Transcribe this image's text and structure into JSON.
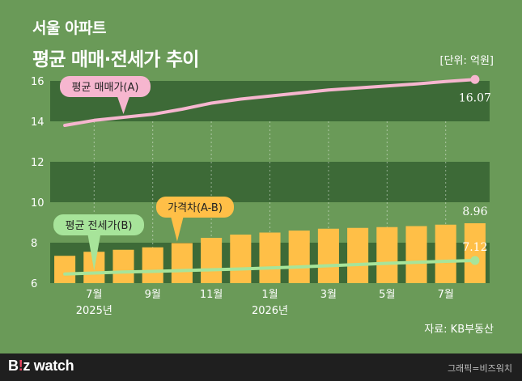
{
  "header": {
    "title_line1": "서울 아파트",
    "title_line2": "평균 매매·전세가 추이",
    "unit": "[단위: 억원]"
  },
  "source": "자료: KB부동산",
  "footer": {
    "logo_b": "B",
    "logo_colon": "!",
    "logo_z": "z",
    "logo_watch": " watch",
    "credit": "그래픽=비즈워치"
  },
  "colors": {
    "background": "#6a9a58",
    "band": "#3d6a37",
    "bar": "#ffbf47",
    "sale_line": "#f6b6cf",
    "jeonse_line": "#a7e49a"
  },
  "chart_data": {
    "type": "line+bar",
    "x": [
      "2025-06",
      "2025-07",
      "2025-08",
      "2025-09",
      "2025-10",
      "2025-11",
      "2025-12",
      "2026-01",
      "2026-02",
      "2026-03",
      "2026-04",
      "2026-05",
      "2026-06",
      "2026-07",
      "2026-08"
    ],
    "x_tick_labels": [
      {
        "index": 1,
        "label": "7월",
        "sub": "2025년"
      },
      {
        "index": 3,
        "label": "9월",
        "sub": ""
      },
      {
        "index": 5,
        "label": "11월",
        "sub": ""
      },
      {
        "index": 7,
        "label": "1월",
        "sub": "2026년"
      },
      {
        "index": 9,
        "label": "3월",
        "sub": ""
      },
      {
        "index": 11,
        "label": "5월",
        "sub": ""
      },
      {
        "index": 13,
        "label": "7월",
        "sub": ""
      }
    ],
    "y_ticks": [
      6,
      8,
      10,
      12,
      14,
      16
    ],
    "ylim": [
      6,
      16.8
    ],
    "bands": [
      [
        6,
        8
      ],
      [
        10,
        12
      ],
      [
        14,
        16
      ]
    ],
    "series": [
      {
        "name": "평균 매매가(A)",
        "kind": "line",
        "values": [
          13.8,
          14.05,
          14.2,
          14.35,
          14.6,
          14.9,
          15.1,
          15.25,
          15.4,
          15.55,
          15.65,
          15.75,
          15.85,
          15.97,
          16.07
        ],
        "end_label": "16.07"
      },
      {
        "name": "평균 전세가(B)",
        "kind": "line",
        "values": [
          6.45,
          6.5,
          6.55,
          6.58,
          6.62,
          6.66,
          6.7,
          6.75,
          6.8,
          6.86,
          6.92,
          6.98,
          7.03,
          7.08,
          7.12
        ],
        "end_label": "7.12"
      },
      {
        "name": "가격차(A-B)",
        "kind": "bar",
        "values": [
          7.35,
          7.55,
          7.65,
          7.77,
          7.98,
          8.24,
          8.4,
          8.5,
          8.6,
          8.69,
          8.73,
          8.77,
          8.82,
          8.89,
          8.96
        ],
        "end_label": "8.96"
      }
    ]
  }
}
